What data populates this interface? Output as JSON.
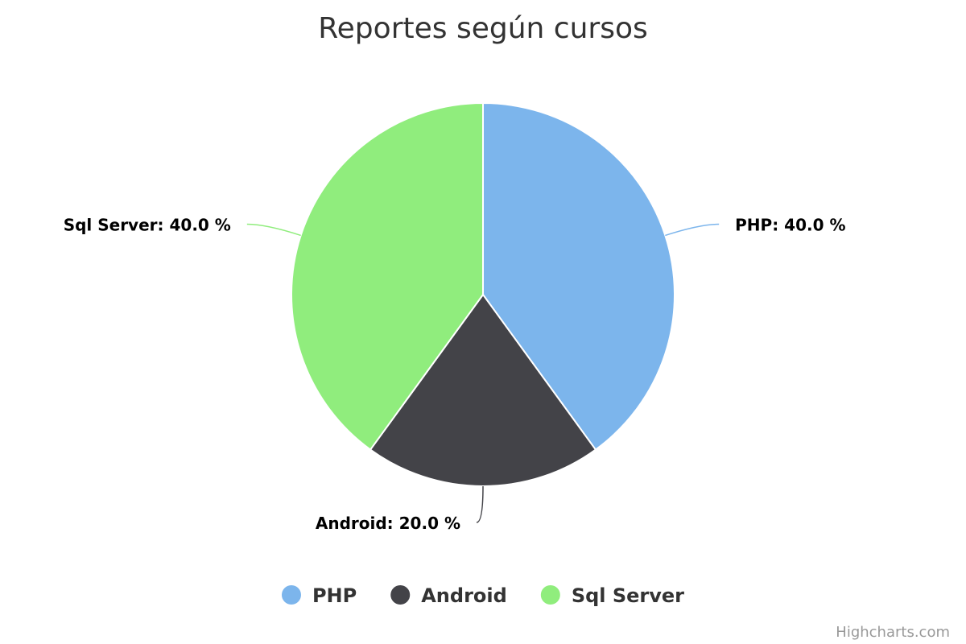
{
  "chart_data": {
    "type": "pie",
    "title": "Reportes según cursos",
    "label_format": "{name}: {value} %",
    "slices": [
      {
        "name": "PHP",
        "value": 40.0,
        "display": "40.0",
        "color": "#7cb5ec"
      },
      {
        "name": "Android",
        "value": 20.0,
        "display": "20.0",
        "color": "#434348"
      },
      {
        "name": "Sql Server",
        "value": 40.0,
        "display": "40.0",
        "color": "#90ed7d"
      }
    ],
    "legend": {
      "placement": "bottom-center",
      "items": [
        "PHP",
        "Android",
        "Sql Server"
      ]
    }
  },
  "credits": "Highcharts.com"
}
